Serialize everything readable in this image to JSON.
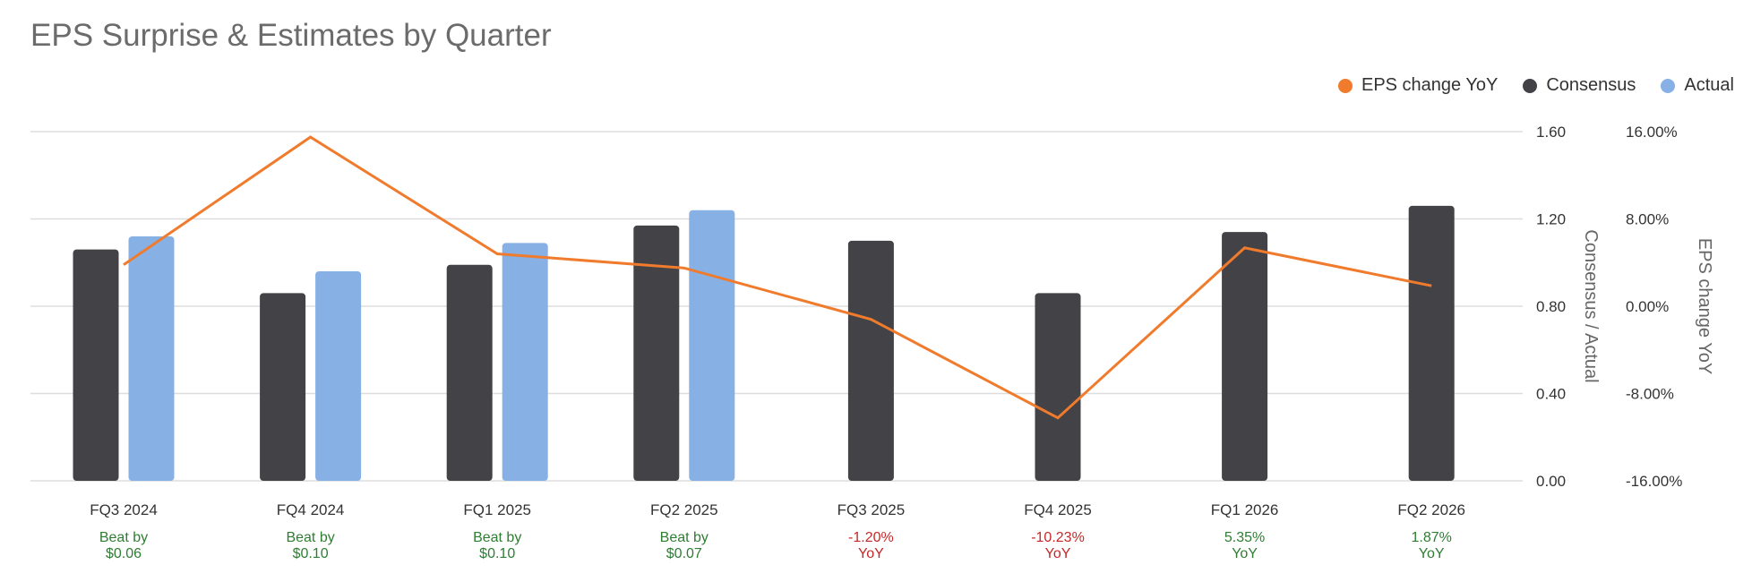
{
  "title": "EPS Surprise & Estimates by Quarter",
  "legend": [
    {
      "label": "EPS change YoY",
      "color": "#f07b2c"
    },
    {
      "label": "Consensus",
      "color": "#434246"
    },
    {
      "label": "Actual",
      "color": "#87b1e5"
    }
  ],
  "colors": {
    "consensus": "#434246",
    "actual": "#87b1e5",
    "line": "#f07b2c",
    "positive": "#2e7d32",
    "negative": "#c62828",
    "grid": "#dddddd"
  },
  "chart_data": {
    "type": "bar",
    "title": "EPS Surprise & Estimates by Quarter",
    "categories": [
      "FQ3 2024",
      "FQ4 2024",
      "FQ1 2025",
      "FQ2 2025",
      "FQ3 2025",
      "FQ4 2025",
      "FQ1 2026",
      "FQ2 2026"
    ],
    "series": [
      {
        "name": "Consensus",
        "type": "bar",
        "axis": "left",
        "values": [
          1.06,
          0.86,
          0.99,
          1.17,
          1.1,
          0.86,
          1.14,
          1.26
        ]
      },
      {
        "name": "Actual",
        "type": "bar",
        "axis": "left",
        "values": [
          1.12,
          0.96,
          1.09,
          1.24,
          null,
          null,
          null,
          null
        ]
      },
      {
        "name": "EPS change YoY",
        "type": "line",
        "axis": "right",
        "values": [
          3.8,
          15.5,
          4.8,
          3.5,
          -1.2,
          -10.23,
          5.35,
          1.87
        ]
      }
    ],
    "y_left": {
      "label": "Consensus / Actual",
      "ticks": [
        "0.00",
        "0.40",
        "0.80",
        "1.20",
        "1.60"
      ],
      "range": [
        0,
        1.6
      ]
    },
    "y_right": {
      "label": "EPS change YoY",
      "ticks": [
        "-16.00%",
        "-8.00%",
        "0.00%",
        "8.00%",
        "16.00%"
      ],
      "range": [
        -16,
        16
      ]
    },
    "annotations": [
      {
        "line1": "Beat by",
        "line2": "$0.06",
        "sentiment": "positive"
      },
      {
        "line1": "Beat by",
        "line2": "$0.10",
        "sentiment": "positive"
      },
      {
        "line1": "Beat by",
        "line2": "$0.10",
        "sentiment": "positive"
      },
      {
        "line1": "Beat by",
        "line2": "$0.07",
        "sentiment": "positive"
      },
      {
        "line1": "-1.20%",
        "line2": "YoY",
        "sentiment": "negative"
      },
      {
        "line1": "-10.23%",
        "line2": "YoY",
        "sentiment": "negative"
      },
      {
        "line1": "5.35%",
        "line2": "YoY",
        "sentiment": "positive"
      },
      {
        "line1": "1.87%",
        "line2": "YoY",
        "sentiment": "positive"
      }
    ],
    "grid": true,
    "legend_position": "top-right"
  }
}
